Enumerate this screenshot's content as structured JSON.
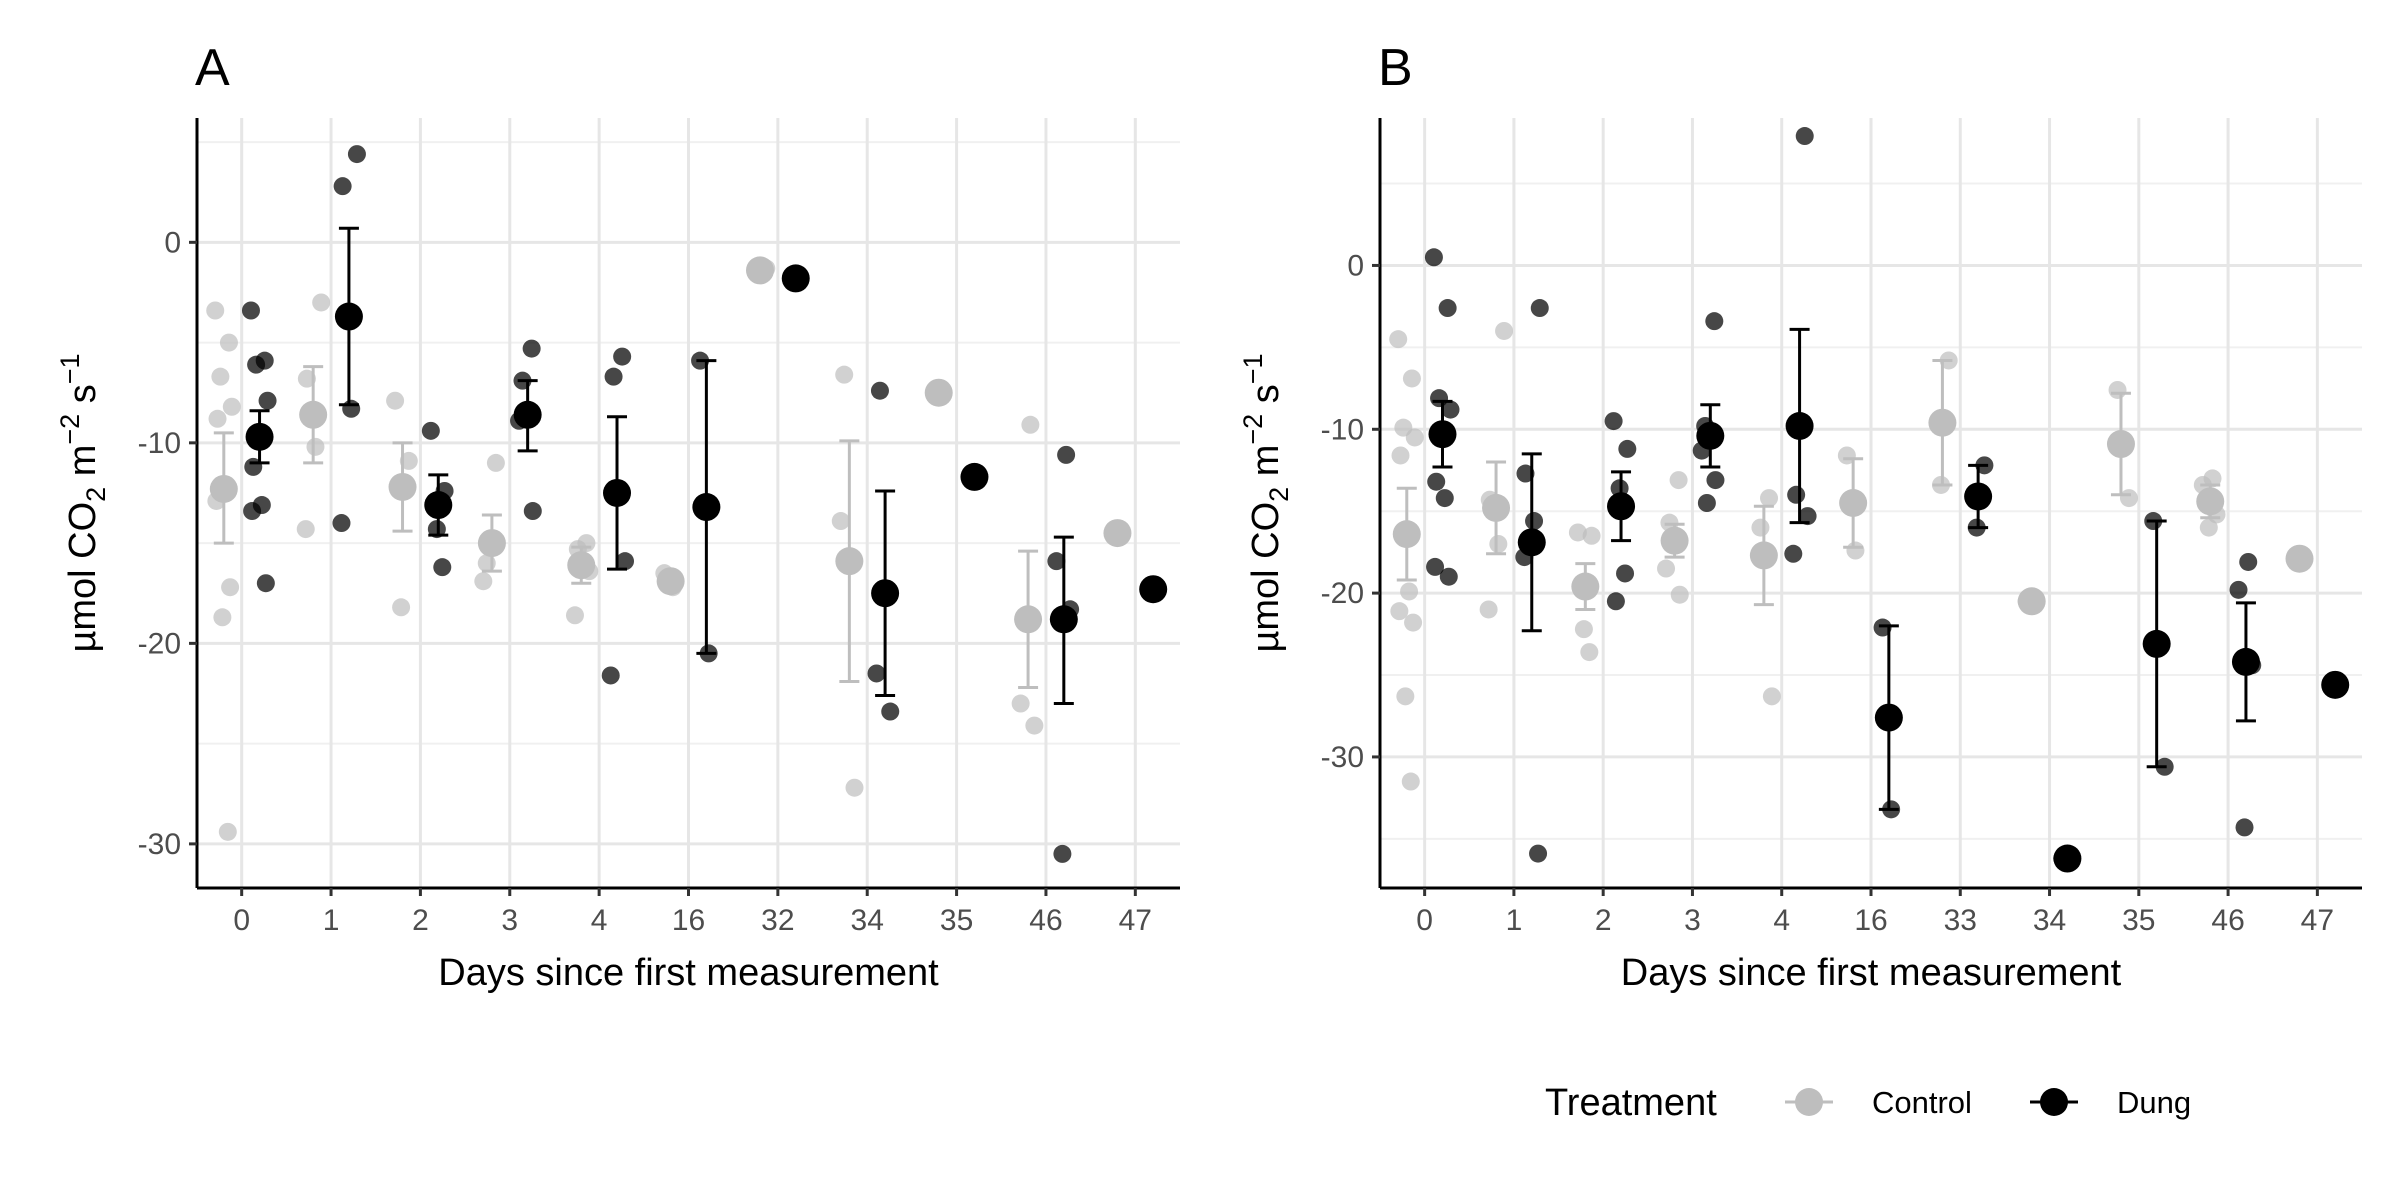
{
  "chart_data": [
    {
      "panel": "A",
      "type": "scatter",
      "xlabel": "Days since first measurement",
      "ylabel": {
        "prefix": "µmol CO",
        "sub": "2",
        "mid": " m",
        "sup1": "−2",
        "mid2": " s",
        "sup2": "−1"
      },
      "categories": [
        "0",
        "1",
        "2",
        "3",
        "4",
        "16",
        "32",
        "34",
        "35",
        "46",
        "47"
      ],
      "ylim": [
        -32.2,
        6.2
      ],
      "yticks": [
        0,
        -10,
        -20,
        -30
      ],
      "ytick_labels": [
        "0",
        "-10",
        "-20",
        "-30"
      ],
      "grid": true,
      "series": [
        {
          "name": "Control",
          "color": "#bebebe",
          "means": [
            {
              "cat": 0,
              "y": -12.3,
              "lo": -15.0,
              "hi": -9.5
            },
            {
              "cat": 1,
              "y": -8.6,
              "lo": -11.0,
              "hi": -6.2
            },
            {
              "cat": 2,
              "y": -12.2,
              "lo": -14.4,
              "hi": -10.0
            },
            {
              "cat": 3,
              "y": -15.0,
              "lo": -16.4,
              "hi": -13.6
            },
            {
              "cat": 4,
              "y": -16.1,
              "lo": -17.0,
              "hi": -15.2
            },
            {
              "cat": 5,
              "y": -16.9,
              "lo": -16.9,
              "hi": -16.9
            },
            {
              "cat": 6,
              "y": -1.4,
              "lo": -1.4,
              "hi": -1.4
            },
            {
              "cat": 7,
              "y": -15.9,
              "lo": -21.9,
              "hi": -9.9
            },
            {
              "cat": 8,
              "y": -7.5,
              "lo": -7.5,
              "hi": -7.5
            },
            {
              "cat": 9,
              "y": -18.8,
              "lo": -22.2,
              "hi": -15.4
            },
            {
              "cat": 10,
              "y": -14.5,
              "lo": -14.5,
              "hi": -14.5
            }
          ],
          "points": [
            {
              "cat": 0,
              "y": -3.4
            },
            {
              "cat": 0,
              "y": -5.0
            },
            {
              "cat": 0,
              "y": -6.7
            },
            {
              "cat": 0,
              "y": -8.2
            },
            {
              "cat": 0,
              "y": -8.8
            },
            {
              "cat": 0,
              "y": -12.4
            },
            {
              "cat": 0,
              "y": -12.9
            },
            {
              "cat": 0,
              "y": -17.2
            },
            {
              "cat": 0,
              "y": -18.7
            },
            {
              "cat": 0,
              "y": -29.4
            },
            {
              "cat": 1,
              "y": -3.0
            },
            {
              "cat": 1,
              "y": -6.8
            },
            {
              "cat": 1,
              "y": -10.2
            },
            {
              "cat": 1,
              "y": -14.3
            },
            {
              "cat": 2,
              "y": -7.9
            },
            {
              "cat": 2,
              "y": -10.9
            },
            {
              "cat": 2,
              "y": -18.2
            },
            {
              "cat": 3,
              "y": -11.0
            },
            {
              "cat": 3,
              "y": -16.0
            },
            {
              "cat": 3,
              "y": -16.9
            },
            {
              "cat": 4,
              "y": -15.0
            },
            {
              "cat": 4,
              "y": -15.3
            },
            {
              "cat": 4,
              "y": -16.4
            },
            {
              "cat": 4,
              "y": -18.6
            },
            {
              "cat": 5,
              "y": -16.5
            },
            {
              "cat": 5,
              "y": -17.2
            },
            {
              "cat": 6,
              "y": -1.3
            },
            {
              "cat": 7,
              "y": -6.6
            },
            {
              "cat": 7,
              "y": -13.9
            },
            {
              "cat": 7,
              "y": -27.2
            },
            {
              "cat": 8,
              "y": -7.4
            },
            {
              "cat": 9,
              "y": -9.1
            },
            {
              "cat": 9,
              "y": -23.0
            },
            {
              "cat": 9,
              "y": -24.1
            },
            {
              "cat": 10,
              "y": -14.6
            }
          ]
        },
        {
          "name": "Dung",
          "color": "#000000",
          "means": [
            {
              "cat": 0,
              "y": -9.7,
              "lo": -11.0,
              "hi": -8.4
            },
            {
              "cat": 1,
              "y": -3.7,
              "lo": -8.1,
              "hi": 0.7
            },
            {
              "cat": 2,
              "y": -13.1,
              "lo": -14.6,
              "hi": -11.6
            },
            {
              "cat": 3,
              "y": -8.6,
              "lo": -10.4,
              "hi": -6.9
            },
            {
              "cat": 4,
              "y": -12.5,
              "lo": -16.3,
              "hi": -8.7
            },
            {
              "cat": 5,
              "y": -13.2,
              "lo": -20.5,
              "hi": -5.9
            },
            {
              "cat": 6,
              "y": -1.8,
              "lo": -1.8,
              "hi": -1.8
            },
            {
              "cat": 7,
              "y": -17.5,
              "lo": -22.6,
              "hi": -12.4
            },
            {
              "cat": 8,
              "y": -11.7,
              "lo": -11.7,
              "hi": -11.7
            },
            {
              "cat": 9,
              "y": -18.8,
              "lo": -23.0,
              "hi": -14.7
            },
            {
              "cat": 10,
              "y": -17.3,
              "lo": -17.3,
              "hi": -17.3
            }
          ],
          "points": [
            {
              "cat": 0,
              "y": -3.4
            },
            {
              "cat": 0,
              "y": -5.9
            },
            {
              "cat": 0,
              "y": -6.1
            },
            {
              "cat": 0,
              "y": -7.9
            },
            {
              "cat": 0,
              "y": -11.2
            },
            {
              "cat": 0,
              "y": -13.1
            },
            {
              "cat": 0,
              "y": -13.4
            },
            {
              "cat": 0,
              "y": -17.0
            },
            {
              "cat": 1,
              "y": 4.4
            },
            {
              "cat": 1,
              "y": 2.8
            },
            {
              "cat": 1,
              "y": -8.3
            },
            {
              "cat": 1,
              "y": -14.0
            },
            {
              "cat": 2,
              "y": -9.4
            },
            {
              "cat": 2,
              "y": -12.4
            },
            {
              "cat": 2,
              "y": -14.3
            },
            {
              "cat": 2,
              "y": -16.2
            },
            {
              "cat": 3,
              "y": -5.3
            },
            {
              "cat": 3,
              "y": -6.9
            },
            {
              "cat": 3,
              "y": -8.9
            },
            {
              "cat": 3,
              "y": -13.4
            },
            {
              "cat": 4,
              "y": -5.7
            },
            {
              "cat": 4,
              "y": -6.7
            },
            {
              "cat": 4,
              "y": -15.9
            },
            {
              "cat": 4,
              "y": -21.6
            },
            {
              "cat": 5,
              "y": -5.9
            },
            {
              "cat": 5,
              "y": -20.5
            },
            {
              "cat": 7,
              "y": -7.4
            },
            {
              "cat": 7,
              "y": -21.5
            },
            {
              "cat": 7,
              "y": -23.4
            },
            {
              "cat": 8,
              "y": -11.7
            },
            {
              "cat": 9,
              "y": -10.6
            },
            {
              "cat": 9,
              "y": -15.9
            },
            {
              "cat": 9,
              "y": -18.3
            },
            {
              "cat": 9,
              "y": -30.5
            },
            {
              "cat": 10,
              "y": -17.3
            }
          ]
        }
      ]
    },
    {
      "panel": "B",
      "type": "scatter",
      "xlabel": "Days since first measurement",
      "ylabel": {
        "prefix": "µmol CO",
        "sub": "2",
        "mid": " m",
        "sup1": "−2",
        "mid2": " s",
        "sup2": "−1"
      },
      "categories": [
        "0",
        "1",
        "2",
        "3",
        "4",
        "16",
        "33",
        "34",
        "35",
        "46",
        "47"
      ],
      "ylim": [
        -38.0,
        9.0
      ],
      "yticks": [
        0,
        -10,
        -20,
        -30
      ],
      "ytick_labels": [
        "0",
        "-10",
        "-20",
        "-30"
      ],
      "grid": true,
      "series": [
        {
          "name": "Control",
          "color": "#bebebe",
          "means": [
            {
              "cat": 0,
              "y": -16.4,
              "lo": -19.2,
              "hi": -13.6
            },
            {
              "cat": 1,
              "y": -14.8,
              "lo": -17.6,
              "hi": -12.0
            },
            {
              "cat": 2,
              "y": -19.6,
              "lo": -21.0,
              "hi": -18.2
            },
            {
              "cat": 3,
              "y": -16.8,
              "lo": -17.8,
              "hi": -15.8
            },
            {
              "cat": 4,
              "y": -17.7,
              "lo": -20.7,
              "hi": -14.7
            },
            {
              "cat": 5,
              "y": -14.5,
              "lo": -17.2,
              "hi": -11.8
            },
            {
              "cat": 6,
              "y": -9.6,
              "lo": -13.4,
              "hi": -5.8
            },
            {
              "cat": 7,
              "y": -20.5,
              "lo": -20.5,
              "hi": -20.5
            },
            {
              "cat": 8,
              "y": -10.9,
              "lo": -14.0,
              "hi": -7.8
            },
            {
              "cat": 9,
              "y": -14.4,
              "lo": -15.4,
              "hi": -13.4
            },
            {
              "cat": 10,
              "y": -17.9,
              "lo": -17.9,
              "hi": -17.9
            }
          ],
          "points": [
            {
              "cat": 0,
              "y": -4.5
            },
            {
              "cat": 0,
              "y": -6.9
            },
            {
              "cat": 0,
              "y": -9.9
            },
            {
              "cat": 0,
              "y": -10.5
            },
            {
              "cat": 0,
              "y": -11.6
            },
            {
              "cat": 0,
              "y": -19.9
            },
            {
              "cat": 0,
              "y": -21.1
            },
            {
              "cat": 0,
              "y": -21.8
            },
            {
              "cat": 0,
              "y": -26.3
            },
            {
              "cat": 0,
              "y": -31.5
            },
            {
              "cat": 1,
              "y": -4.0
            },
            {
              "cat": 1,
              "y": -14.3
            },
            {
              "cat": 1,
              "y": -17.0
            },
            {
              "cat": 1,
              "y": -21.0
            },
            {
              "cat": 2,
              "y": -16.3
            },
            {
              "cat": 2,
              "y": -16.5
            },
            {
              "cat": 2,
              "y": -22.2
            },
            {
              "cat": 2,
              "y": -23.6
            },
            {
              "cat": 3,
              "y": -13.1
            },
            {
              "cat": 3,
              "y": -15.7
            },
            {
              "cat": 3,
              "y": -18.5
            },
            {
              "cat": 3,
              "y": -20.1
            },
            {
              "cat": 4,
              "y": -14.2
            },
            {
              "cat": 4,
              "y": -16.0
            },
            {
              "cat": 4,
              "y": -26.3
            },
            {
              "cat": 5,
              "y": -11.6
            },
            {
              "cat": 5,
              "y": -17.4
            },
            {
              "cat": 6,
              "y": -5.8
            },
            {
              "cat": 6,
              "y": -13.4
            },
            {
              "cat": 7,
              "y": -20.5
            },
            {
              "cat": 8,
              "y": -7.6
            },
            {
              "cat": 8,
              "y": -14.2
            },
            {
              "cat": 9,
              "y": -13.0
            },
            {
              "cat": 9,
              "y": -13.4
            },
            {
              "cat": 9,
              "y": -15.2
            },
            {
              "cat": 9,
              "y": -16.0
            },
            {
              "cat": 10,
              "y": -17.9
            }
          ]
        },
        {
          "name": "Dung",
          "color": "#000000",
          "means": [
            {
              "cat": 0,
              "y": -10.3,
              "lo": -12.3,
              "hi": -8.3
            },
            {
              "cat": 1,
              "y": -16.9,
              "lo": -22.3,
              "hi": -11.5
            },
            {
              "cat": 2,
              "y": -14.7,
              "lo": -16.8,
              "hi": -12.6
            },
            {
              "cat": 3,
              "y": -10.4,
              "lo": -12.3,
              "hi": -8.5
            },
            {
              "cat": 4,
              "y": -9.8,
              "lo": -15.7,
              "hi": -3.9
            },
            {
              "cat": 5,
              "y": -27.6,
              "lo": -33.2,
              "hi": -22.0
            },
            {
              "cat": 6,
              "y": -14.1,
              "lo": -16.0,
              "hi": -12.2
            },
            {
              "cat": 7,
              "y": -36.2,
              "lo": -36.2,
              "hi": -36.2
            },
            {
              "cat": 8,
              "y": -23.1,
              "lo": -30.6,
              "hi": -15.6
            },
            {
              "cat": 9,
              "y": -24.2,
              "lo": -27.8,
              "hi": -20.6
            },
            {
              "cat": 10,
              "y": -25.6,
              "lo": -25.6,
              "hi": -25.6
            }
          ],
          "points": [
            {
              "cat": 0,
              "y": 0.5
            },
            {
              "cat": 0,
              "y": -2.6
            },
            {
              "cat": 0,
              "y": -8.1
            },
            {
              "cat": 0,
              "y": -8.8
            },
            {
              "cat": 0,
              "y": -13.2
            },
            {
              "cat": 0,
              "y": -14.2
            },
            {
              "cat": 0,
              "y": -18.4
            },
            {
              "cat": 0,
              "y": -19.0
            },
            {
              "cat": 1,
              "y": -2.6
            },
            {
              "cat": 1,
              "y": -12.7
            },
            {
              "cat": 1,
              "y": -15.6
            },
            {
              "cat": 1,
              "y": -17.8
            },
            {
              "cat": 1,
              "y": -35.9
            },
            {
              "cat": 2,
              "y": -9.5
            },
            {
              "cat": 2,
              "y": -11.2
            },
            {
              "cat": 2,
              "y": -13.6
            },
            {
              "cat": 2,
              "y": -18.8
            },
            {
              "cat": 2,
              "y": -20.5
            },
            {
              "cat": 3,
              "y": -3.4
            },
            {
              "cat": 3,
              "y": -9.8
            },
            {
              "cat": 3,
              "y": -11.3
            },
            {
              "cat": 3,
              "y": -13.1
            },
            {
              "cat": 3,
              "y": -14.5
            },
            {
              "cat": 4,
              "y": 7.9
            },
            {
              "cat": 4,
              "y": -14.0
            },
            {
              "cat": 4,
              "y": -15.3
            },
            {
              "cat": 4,
              "y": -17.6
            },
            {
              "cat": 5,
              "y": -22.1
            },
            {
              "cat": 5,
              "y": -33.2
            },
            {
              "cat": 6,
              "y": -12.2
            },
            {
              "cat": 6,
              "y": -16.0
            },
            {
              "cat": 7,
              "y": -36.2
            },
            {
              "cat": 8,
              "y": -15.6
            },
            {
              "cat": 8,
              "y": -30.6
            },
            {
              "cat": 9,
              "y": -18.1
            },
            {
              "cat": 9,
              "y": -19.8
            },
            {
              "cat": 9,
              "y": -24.4
            },
            {
              "cat": 9,
              "y": -34.3
            },
            {
              "cat": 10,
              "y": -25.6
            }
          ]
        }
      ]
    }
  ],
  "legend": {
    "title": "Treatment",
    "position": "bottom",
    "items": [
      {
        "label": "Control",
        "color": "#bebebe"
      },
      {
        "label": "Dung",
        "color": "#000000"
      }
    ]
  }
}
